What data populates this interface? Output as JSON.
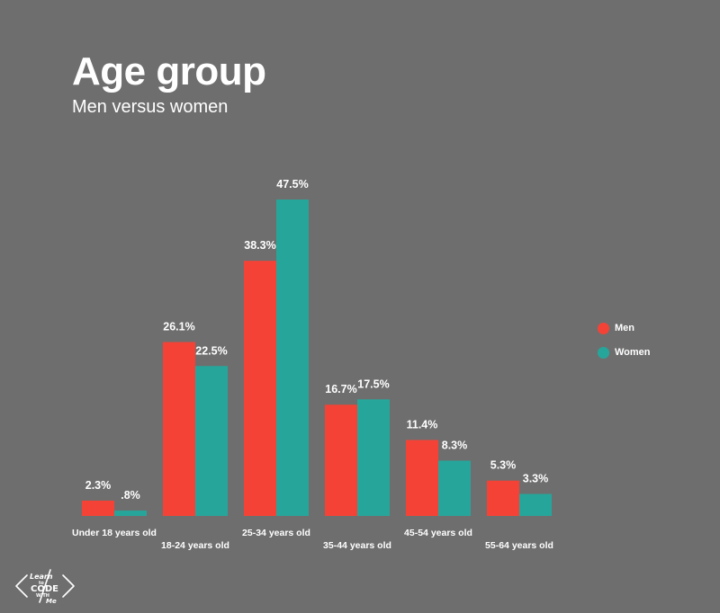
{
  "header": {
    "title": "Age group",
    "subtitle": "Men versus women"
  },
  "colors": {
    "background": "#6e6e6e",
    "men": "#f44336",
    "women": "#26a69a"
  },
  "chart_data": {
    "type": "bar",
    "title": "Age group",
    "subtitle": "Men versus women",
    "categories": [
      "Under 18 years old",
      "18-24 years old",
      "25-34 years old",
      "35-44 years old",
      "45-54 years old",
      "55-64 years old"
    ],
    "series": [
      {
        "name": "Men",
        "values": [
          2.3,
          26.1,
          38.3,
          16.7,
          11.4,
          5.3
        ],
        "labels": [
          "2.3%",
          "26.1%",
          "38.3%",
          "16.7%",
          "11.4%",
          "5.3%"
        ],
        "color": "#f44336"
      },
      {
        "name": "Women",
        "values": [
          0.8,
          22.5,
          47.5,
          17.5,
          8.3,
          3.3
        ],
        "labels": [
          ".8%",
          "22.5%",
          "47.5%",
          "17.5%",
          "8.3%",
          "3.3%"
        ],
        "color": "#26a69a"
      }
    ],
    "ylim": [
      0,
      47.5
    ],
    "grid": false,
    "legend_position": "right"
  },
  "legend": {
    "items": [
      {
        "label": "Men",
        "color": "#f44336"
      },
      {
        "label": "Women",
        "color": "#26a69a"
      }
    ]
  },
  "logo": {
    "line1": "Learn",
    "line2": "to",
    "line3": "CODE",
    "line4": "WITH",
    "line5": "Me"
  }
}
